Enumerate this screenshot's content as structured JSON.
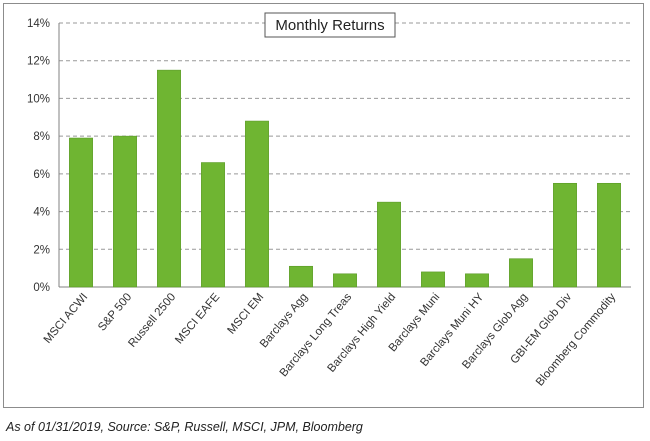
{
  "chart_data": {
    "type": "bar",
    "title": "Monthly Returns",
    "categories": [
      "MSCI ACWI",
      "S&P 500",
      "Russell 2500",
      "MSCI EAFE",
      "MSCI EM",
      "Barclays Agg",
      "Barclays Long Treas",
      "Barclays High Yield",
      "Barclays Muni",
      "Barclays Muni HY",
      "Barclays Glob Agg",
      "GBI-EM Glob Div",
      "Bloomberg Commodity"
    ],
    "values": [
      7.9,
      8.0,
      11.5,
      6.6,
      8.8,
      1.1,
      0.7,
      4.5,
      0.8,
      0.7,
      1.5,
      5.5,
      5.5
    ],
    "value_unit": "%",
    "ylim": [
      0,
      14
    ],
    "yticks": [
      0,
      2,
      4,
      6,
      8,
      10,
      12,
      14
    ],
    "ytick_labels": [
      "0%",
      "2%",
      "4%",
      "6%",
      "8%",
      "10%",
      "12%",
      "14%"
    ],
    "xlabel": "",
    "ylabel": "",
    "grid": true,
    "legend": "none",
    "bar_color": "#6fb532",
    "bar_edge_color": "#5a9a26",
    "grid_color": "#999999"
  },
  "footnote": "As of 01/31/2019, Source: S&P, Russell, MSCI, JPM, Bloomberg"
}
